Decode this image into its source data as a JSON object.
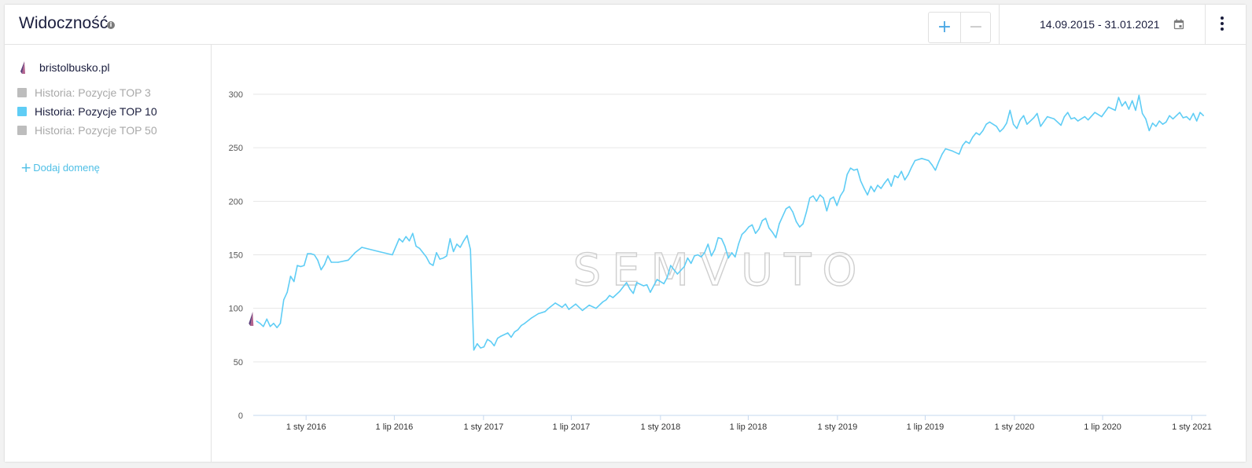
{
  "header": {
    "title": "Widoczność",
    "zoom_in": "+",
    "zoom_out": "−",
    "date_range": "14.09.2015 - 31.01.2021"
  },
  "legend": {
    "domain": "bristolbusko.pl",
    "series": [
      {
        "label": "Historia: Pozycje TOP 3",
        "color": "#bdbdbd",
        "active": false
      },
      {
        "label": "Historia: Pozycje TOP 10",
        "color": "#5fcdf5",
        "active": true
      },
      {
        "label": "Historia: Pozycje TOP 50",
        "color": "#bdbdbd",
        "active": false
      }
    ],
    "add_domain": "Dodaj domenę"
  },
  "watermark": "SEMVUTO",
  "chart_data": {
    "type": "line",
    "title": "",
    "xlabel": "",
    "ylabel": "",
    "ylim": [
      0,
      300
    ],
    "yticks": [
      0,
      50,
      100,
      150,
      200,
      250,
      300
    ],
    "xlim": [
      "2015-09-14",
      "2021-01-31"
    ],
    "xticks": [
      {
        "date": "2016-01-01",
        "label": "1 sty 2016"
      },
      {
        "date": "2016-07-01",
        "label": "1 lip 2016"
      },
      {
        "date": "2017-01-01",
        "label": "1 sty 2017"
      },
      {
        "date": "2017-07-01",
        "label": "1 lip 2017"
      },
      {
        "date": "2018-01-01",
        "label": "1 sty 2018"
      },
      {
        "date": "2018-07-01",
        "label": "1 lip 2018"
      },
      {
        "date": "2019-01-01",
        "label": "1 sty 2019"
      },
      {
        "date": "2019-07-01",
        "label": "1 lip 2019"
      },
      {
        "date": "2020-01-01",
        "label": "1 sty 2020"
      },
      {
        "date": "2020-07-01",
        "label": "1 lip 2020"
      },
      {
        "date": "2021-01-01",
        "label": "1 sty 2021"
      }
    ],
    "grid": true,
    "series": [
      {
        "name": "Historia: Pozycje TOP 10",
        "color": "#5fcdf5",
        "points": [
          [
            "2015-09-21",
            88
          ],
          [
            "2015-09-28",
            86
          ],
          [
            "2015-10-05",
            83
          ],
          [
            "2015-10-12",
            90
          ],
          [
            "2015-10-19",
            83
          ],
          [
            "2015-10-26",
            86
          ],
          [
            "2015-11-02",
            82
          ],
          [
            "2015-11-09",
            86
          ],
          [
            "2015-11-16",
            108
          ],
          [
            "2015-11-23",
            115
          ],
          [
            "2015-11-30",
            130
          ],
          [
            "2015-12-07",
            125
          ],
          [
            "2015-12-14",
            140
          ],
          [
            "2015-12-21",
            139
          ],
          [
            "2015-12-28",
            140
          ],
          [
            "2016-01-04",
            151
          ],
          [
            "2016-01-11",
            151
          ],
          [
            "2016-01-18",
            150
          ],
          [
            "2016-01-25",
            145
          ],
          [
            "2016-02-01",
            136
          ],
          [
            "2016-02-08",
            141
          ],
          [
            "2016-02-15",
            149
          ],
          [
            "2016-02-22",
            143
          ],
          [
            "2016-03-07",
            143
          ],
          [
            "2016-03-28",
            145
          ],
          [
            "2016-04-11",
            152
          ],
          [
            "2016-04-25",
            157
          ],
          [
            "2016-05-30",
            153
          ],
          [
            "2016-06-27",
            150
          ],
          [
            "2016-07-11",
            165
          ],
          [
            "2016-07-18",
            162
          ],
          [
            "2016-07-25",
            167
          ],
          [
            "2016-08-01",
            163
          ],
          [
            "2016-08-08",
            170
          ],
          [
            "2016-08-15",
            158
          ],
          [
            "2016-08-22",
            156
          ],
          [
            "2016-08-29",
            152
          ],
          [
            "2016-09-05",
            148
          ],
          [
            "2016-09-12",
            142
          ],
          [
            "2016-09-19",
            140
          ],
          [
            "2016-09-26",
            152
          ],
          [
            "2016-10-03",
            146
          ],
          [
            "2016-10-10",
            147
          ],
          [
            "2016-10-17",
            149
          ],
          [
            "2016-10-24",
            165
          ],
          [
            "2016-10-31",
            153
          ],
          [
            "2016-11-07",
            160
          ],
          [
            "2016-11-14",
            157
          ],
          [
            "2016-11-21",
            163
          ],
          [
            "2016-11-28",
            168
          ],
          [
            "2016-12-05",
            155
          ],
          [
            "2016-12-12",
            61
          ],
          [
            "2016-12-19",
            67
          ],
          [
            "2016-12-26",
            63
          ],
          [
            "2017-01-02",
            64
          ],
          [
            "2017-01-09",
            71
          ],
          [
            "2017-01-16",
            69
          ],
          [
            "2017-01-23",
            65
          ],
          [
            "2017-01-30",
            72
          ],
          [
            "2017-02-06",
            74
          ],
          [
            "2017-02-20",
            77
          ],
          [
            "2017-02-27",
            73
          ],
          [
            "2017-03-06",
            78
          ],
          [
            "2017-03-13",
            80
          ],
          [
            "2017-03-20",
            84
          ],
          [
            "2017-03-27",
            86
          ],
          [
            "2017-04-10",
            91
          ],
          [
            "2017-04-24",
            95
          ],
          [
            "2017-05-08",
            97
          ],
          [
            "2017-05-15",
            100
          ],
          [
            "2017-05-29",
            105
          ],
          [
            "2017-06-05",
            103
          ],
          [
            "2017-06-12",
            101
          ],
          [
            "2017-06-19",
            104
          ],
          [
            "2017-06-26",
            99
          ],
          [
            "2017-07-10",
            104
          ],
          [
            "2017-07-24",
            98
          ],
          [
            "2017-08-07",
            103
          ],
          [
            "2017-08-21",
            100
          ],
          [
            "2017-09-04",
            106
          ],
          [
            "2017-09-11",
            108
          ],
          [
            "2017-09-18",
            112
          ],
          [
            "2017-09-25",
            110
          ],
          [
            "2017-10-09",
            116
          ],
          [
            "2017-10-23",
            124
          ],
          [
            "2017-10-30",
            118
          ],
          [
            "2017-11-06",
            114
          ],
          [
            "2017-11-13",
            124
          ],
          [
            "2017-11-27",
            121
          ],
          [
            "2017-12-04",
            122
          ],
          [
            "2017-12-11",
            115
          ],
          [
            "2017-12-25",
            127
          ],
          [
            "2018-01-08",
            123
          ],
          [
            "2018-01-15",
            129
          ],
          [
            "2018-01-22",
            140
          ],
          [
            "2018-01-29",
            136
          ],
          [
            "2018-02-05",
            132
          ],
          [
            "2018-02-19",
            139
          ],
          [
            "2018-02-26",
            147
          ],
          [
            "2018-03-05",
            142
          ],
          [
            "2018-03-12",
            149
          ],
          [
            "2018-03-19",
            150
          ],
          [
            "2018-03-26",
            148
          ],
          [
            "2018-04-02",
            152
          ],
          [
            "2018-04-09",
            160
          ],
          [
            "2018-04-16",
            149
          ],
          [
            "2018-04-23",
            155
          ],
          [
            "2018-04-30",
            166
          ],
          [
            "2018-05-07",
            165
          ],
          [
            "2018-05-14",
            158
          ],
          [
            "2018-05-21",
            147
          ],
          [
            "2018-05-28",
            152
          ],
          [
            "2018-06-04",
            148
          ],
          [
            "2018-06-11",
            160
          ],
          [
            "2018-06-18",
            169
          ],
          [
            "2018-06-25",
            172
          ],
          [
            "2018-07-02",
            176
          ],
          [
            "2018-07-09",
            178
          ],
          [
            "2018-07-16",
            170
          ],
          [
            "2018-07-23",
            174
          ],
          [
            "2018-07-30",
            182
          ],
          [
            "2018-08-06",
            184
          ],
          [
            "2018-08-13",
            175
          ],
          [
            "2018-08-20",
            171
          ],
          [
            "2018-08-27",
            166
          ],
          [
            "2018-09-03",
            179
          ],
          [
            "2018-09-10",
            186
          ],
          [
            "2018-09-17",
            193
          ],
          [
            "2018-09-24",
            195
          ],
          [
            "2018-10-01",
            190
          ],
          [
            "2018-10-08",
            181
          ],
          [
            "2018-10-15",
            176
          ],
          [
            "2018-10-22",
            179
          ],
          [
            "2018-10-29",
            190
          ],
          [
            "2018-11-05",
            203
          ],
          [
            "2018-11-12",
            205
          ],
          [
            "2018-11-19",
            200
          ],
          [
            "2018-11-26",
            206
          ],
          [
            "2018-12-03",
            203
          ],
          [
            "2018-12-10",
            191
          ],
          [
            "2018-12-17",
            202
          ],
          [
            "2018-12-24",
            204
          ],
          [
            "2018-12-31",
            196
          ],
          [
            "2019-01-07",
            205
          ],
          [
            "2019-01-14",
            210
          ],
          [
            "2019-01-21",
            225
          ],
          [
            "2019-01-28",
            231
          ],
          [
            "2019-02-04",
            229
          ],
          [
            "2019-02-11",
            230
          ],
          [
            "2019-02-18",
            219
          ],
          [
            "2019-02-25",
            212
          ],
          [
            "2019-03-04",
            206
          ],
          [
            "2019-03-11",
            214
          ],
          [
            "2019-03-18",
            209
          ],
          [
            "2019-03-25",
            215
          ],
          [
            "2019-04-01",
            212
          ],
          [
            "2019-04-08",
            217
          ],
          [
            "2019-04-15",
            221
          ],
          [
            "2019-04-22",
            214
          ],
          [
            "2019-04-29",
            224
          ],
          [
            "2019-05-06",
            222
          ],
          [
            "2019-05-13",
            228
          ],
          [
            "2019-05-20",
            220
          ],
          [
            "2019-05-27",
            225
          ],
          [
            "2019-06-03",
            232
          ],
          [
            "2019-06-10",
            238
          ],
          [
            "2019-06-24",
            240
          ],
          [
            "2019-07-08",
            238
          ],
          [
            "2019-07-15",
            234
          ],
          [
            "2019-07-22",
            229
          ],
          [
            "2019-07-29",
            237
          ],
          [
            "2019-08-05",
            244
          ],
          [
            "2019-08-12",
            249
          ],
          [
            "2019-08-26",
            247
          ],
          [
            "2019-09-09",
            244
          ],
          [
            "2019-09-16",
            252
          ],
          [
            "2019-09-23",
            256
          ],
          [
            "2019-09-30",
            254
          ],
          [
            "2019-10-07",
            260
          ],
          [
            "2019-10-14",
            264
          ],
          [
            "2019-10-21",
            262
          ],
          [
            "2019-10-28",
            266
          ],
          [
            "2019-11-04",
            272
          ],
          [
            "2019-11-11",
            274
          ],
          [
            "2019-11-25",
            270
          ],
          [
            "2019-12-02",
            265
          ],
          [
            "2019-12-09",
            268
          ],
          [
            "2019-12-16",
            273
          ],
          [
            "2019-12-23",
            285
          ],
          [
            "2019-12-30",
            272
          ],
          [
            "2020-01-06",
            268
          ],
          [
            "2020-01-13",
            276
          ],
          [
            "2020-01-20",
            280
          ],
          [
            "2020-01-27",
            272
          ],
          [
            "2020-02-10",
            278
          ],
          [
            "2020-02-17",
            282
          ],
          [
            "2020-02-24",
            270
          ],
          [
            "2020-03-09",
            279
          ],
          [
            "2020-03-23",
            277
          ],
          [
            "2020-04-06",
            271
          ],
          [
            "2020-04-13",
            279
          ],
          [
            "2020-04-20",
            283
          ],
          [
            "2020-04-27",
            277
          ],
          [
            "2020-05-04",
            278
          ],
          [
            "2020-05-11",
            275
          ],
          [
            "2020-05-25",
            279
          ],
          [
            "2020-06-01",
            276
          ],
          [
            "2020-06-15",
            283
          ],
          [
            "2020-06-29",
            279
          ],
          [
            "2020-07-13",
            288
          ],
          [
            "2020-07-27",
            285
          ],
          [
            "2020-08-03",
            297
          ],
          [
            "2020-08-10",
            289
          ],
          [
            "2020-08-17",
            293
          ],
          [
            "2020-08-24",
            286
          ],
          [
            "2020-08-31",
            294
          ],
          [
            "2020-09-07",
            285
          ],
          [
            "2020-09-14",
            299
          ],
          [
            "2020-09-21",
            282
          ],
          [
            "2020-09-28",
            277
          ],
          [
            "2020-10-05",
            266
          ],
          [
            "2020-10-12",
            273
          ],
          [
            "2020-10-19",
            270
          ],
          [
            "2020-10-26",
            275
          ],
          [
            "2020-11-02",
            272
          ],
          [
            "2020-11-09",
            274
          ],
          [
            "2020-11-16",
            280
          ],
          [
            "2020-11-23",
            277
          ],
          [
            "2020-11-30",
            280
          ],
          [
            "2020-12-07",
            283
          ],
          [
            "2020-12-14",
            278
          ],
          [
            "2020-12-21",
            279
          ],
          [
            "2020-12-28",
            276
          ],
          [
            "2021-01-04",
            282
          ],
          [
            "2021-01-11",
            275
          ],
          [
            "2021-01-18",
            283
          ],
          [
            "2021-01-25",
            280
          ]
        ]
      }
    ]
  }
}
